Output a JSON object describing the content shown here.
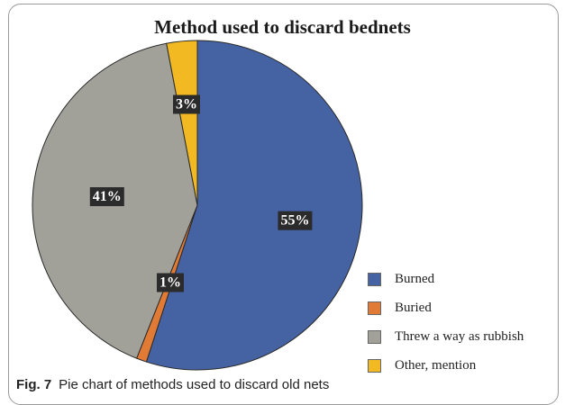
{
  "chart_data": {
    "type": "pie",
    "title": "Method used to discard bednets",
    "categories": [
      "Burned",
      "Buried",
      "Threw a way as rubbish",
      "Other, mention"
    ],
    "values": [
      55,
      1,
      41,
      3
    ],
    "labels": [
      "55%",
      "1%",
      "41%",
      "3%"
    ],
    "colors": [
      "#4562a3",
      "#e07a34",
      "#a1a19a",
      "#f2b922"
    ],
    "legend_position": "bottom-right"
  },
  "caption": {
    "fig_label": "Fig. 7",
    "text": "Pie chart of methods used to discard old nets"
  }
}
